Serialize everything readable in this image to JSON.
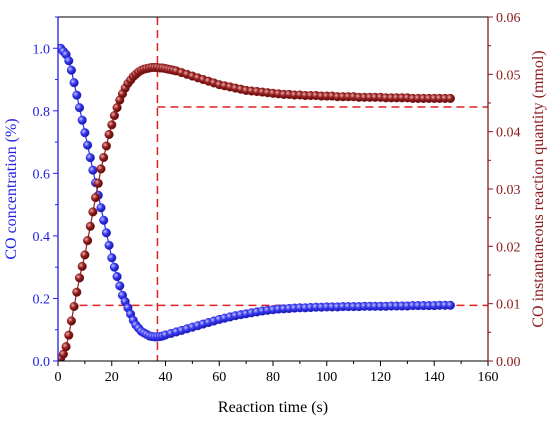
{
  "chart_data": {
    "type": "scatter",
    "xlabel": "Reaction time  (s)",
    "ylabel_left": "CO concentration  (%)",
    "ylabel_right": "CO instantaneous reaction quantity (mmol)",
    "xlim": [
      0,
      160
    ],
    "x_ticks": [
      0,
      20,
      40,
      60,
      80,
      100,
      120,
      140,
      160
    ],
    "ylim_left": [
      0,
      1.1
    ],
    "y_ticks_left": [
      0.0,
      0.2,
      0.4,
      0.6,
      0.8,
      1.0
    ],
    "ylim_right": [
      0,
      0.06
    ],
    "y_ticks_right": [
      0.0,
      0.01,
      0.02,
      0.03,
      0.04,
      0.05,
      0.06
    ],
    "left_color": "#1f1fe6",
    "right_color": "#8b1a1a",
    "guide_color": "#e02020",
    "grid": false,
    "series": [
      {
        "axis": "left",
        "color": "#2a2ae8",
        "x": [
          0,
          1,
          2,
          3,
          4,
          5,
          6,
          7,
          8,
          9,
          10,
          11,
          12,
          13,
          14,
          15,
          16,
          17,
          18,
          19,
          20,
          21,
          22,
          23,
          24,
          25,
          26,
          27,
          28,
          29,
          30,
          31,
          32,
          33,
          34,
          35,
          36,
          37,
          38,
          39,
          40,
          42,
          44,
          46,
          48,
          50,
          52,
          54,
          56,
          58,
          60,
          62,
          64,
          66,
          68,
          70,
          72,
          74,
          76,
          78,
          80,
          82,
          84,
          86,
          88,
          90,
          92,
          94,
          96,
          98,
          100,
          102,
          104,
          106,
          108,
          110,
          112,
          114,
          116,
          118,
          120,
          122,
          124,
          126,
          128,
          130,
          132,
          134,
          136,
          138,
          140,
          142,
          144,
          146
        ],
        "y": [
          1.0,
          1.0,
          0.99,
          0.98,
          0.96,
          0.93,
          0.89,
          0.85,
          0.81,
          0.77,
          0.73,
          0.69,
          0.65,
          0.61,
          0.57,
          0.53,
          0.49,
          0.45,
          0.41,
          0.37,
          0.33,
          0.3,
          0.27,
          0.24,
          0.21,
          0.19,
          0.17,
          0.15,
          0.13,
          0.115,
          0.105,
          0.095,
          0.09,
          0.085,
          0.08,
          0.078,
          0.077,
          0.077,
          0.078,
          0.08,
          0.083,
          0.088,
          0.093,
          0.098,
          0.103,
          0.108,
          0.113,
          0.118,
          0.123,
          0.128,
          0.133,
          0.137,
          0.141,
          0.145,
          0.148,
          0.151,
          0.154,
          0.157,
          0.16,
          0.162,
          0.164,
          0.166,
          0.167,
          0.168,
          0.169,
          0.17,
          0.17,
          0.171,
          0.172,
          0.172,
          0.173,
          0.173,
          0.173,
          0.174,
          0.174,
          0.174,
          0.174,
          0.175,
          0.175,
          0.175,
          0.175,
          0.175,
          0.176,
          0.176,
          0.176,
          0.176,
          0.177,
          0.177,
          0.177,
          0.177,
          0.177,
          0.178,
          0.178,
          0.178
        ]
      },
      {
        "axis": "right",
        "color": "#8e1d1d",
        "x": [
          0,
          1,
          2,
          3,
          4,
          5,
          6,
          7,
          8,
          9,
          10,
          11,
          12,
          13,
          14,
          15,
          16,
          17,
          18,
          19,
          20,
          21,
          22,
          23,
          24,
          25,
          26,
          27,
          28,
          29,
          30,
          31,
          32,
          33,
          34,
          35,
          36,
          37,
          38,
          39,
          40,
          41,
          42,
          43,
          44,
          46,
          48,
          50,
          52,
          54,
          56,
          58,
          60,
          62,
          64,
          66,
          68,
          70,
          72,
          74,
          76,
          78,
          80,
          82,
          84,
          86,
          88,
          90,
          92,
          94,
          96,
          98,
          100,
          102,
          104,
          106,
          108,
          110,
          112,
          114,
          116,
          118,
          120,
          122,
          124,
          126,
          128,
          130,
          132,
          134,
          136,
          138,
          140,
          142,
          144,
          146
        ],
        "y": [
          0.0,
          0.0005,
          0.0012,
          0.0025,
          0.0045,
          0.007,
          0.0095,
          0.012,
          0.0145,
          0.0165,
          0.0185,
          0.021,
          0.0235,
          0.026,
          0.0285,
          0.031,
          0.0335,
          0.0355,
          0.0375,
          0.0395,
          0.0412,
          0.0428,
          0.0442,
          0.0455,
          0.0466,
          0.0476,
          0.0484,
          0.049,
          0.0496,
          0.05,
          0.0504,
          0.0507,
          0.0509,
          0.051,
          0.0511,
          0.0512,
          0.0512,
          0.0512,
          0.0511,
          0.0511,
          0.051,
          0.0509,
          0.0508,
          0.0507,
          0.0506,
          0.0503,
          0.05,
          0.0497,
          0.0494,
          0.0491,
          0.0488,
          0.0485,
          0.0482,
          0.048,
          0.0478,
          0.0476,
          0.0474,
          0.0472,
          0.0471,
          0.047,
          0.0469,
          0.0468,
          0.0467,
          0.0466,
          0.0465,
          0.0465,
          0.0464,
          0.0464,
          0.0463,
          0.0463,
          0.0463,
          0.0462,
          0.0462,
          0.0462,
          0.0461,
          0.0461,
          0.0461,
          0.0461,
          0.046,
          0.046,
          0.046,
          0.046,
          0.046,
          0.0459,
          0.0459,
          0.0459,
          0.0459,
          0.0459,
          0.0458,
          0.0458,
          0.0458,
          0.0458,
          0.0458,
          0.0458,
          0.0458,
          0.0458
        ]
      }
    ],
    "guides": {
      "vertical_x": 37,
      "left_hline": {
        "y": 0.178,
        "x_from": 8,
        "x_to": 160
      },
      "right_hline": {
        "y": 0.0443,
        "x_from": 37,
        "x_to": 160
      }
    }
  }
}
